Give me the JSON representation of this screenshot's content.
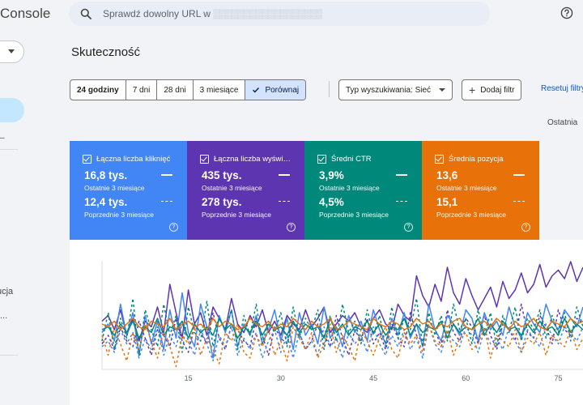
{
  "header": {
    "app_title": "Console",
    "search_placeholder": "Sprawdź dowolny URL w",
    "search_blurred": "▒▒▒▒▒▒▒▒▒▒▒▒▒▒▒▒▒▒"
  },
  "nav": {
    "dash": "–",
    "partial_item_1": "ucja",
    "partial_item_2": "..."
  },
  "page": {
    "title": "Skuteczność"
  },
  "date_range": {
    "options": [
      "24 godziny",
      "7 dni",
      "28 dni",
      "3 miesiące",
      "Porównaj"
    ],
    "selected": "Porównaj"
  },
  "filters": {
    "search_type": "Typ wyszukiwania: Sieć",
    "add_filter": "Dodaj filtr",
    "reset": "Resetuj filtry",
    "last_updated": "Ostatnia"
  },
  "metrics": [
    {
      "label": "Łączna liczba kliknięć",
      "current": "16,8 tys.",
      "current_period": "Ostatnie 3 miesiące",
      "previous": "12,4 tys.",
      "previous_period": "Poprzednie 3 miesiące",
      "color": "#4285f4"
    },
    {
      "label": "Łączna liczba wyświ…",
      "current": "435 tys.",
      "current_period": "Ostatnie 3 miesiące",
      "previous": "278 tys.",
      "previous_period": "Poprzednie 3 miesiące",
      "color": "#5e35b1"
    },
    {
      "label": "Średni CTR",
      "current": "3,9%",
      "current_period": "Ostatnie 3 miesiące",
      "previous": "4,5%",
      "previous_period": "Poprzednie 3 miesiące",
      "color": "#00897b"
    },
    {
      "label": "Średnia pozycja",
      "current": "13,6",
      "current_period": "Ostatnie 3 miesiące",
      "previous": "15,1",
      "previous_period": "Poprzednie 3 miesiące",
      "color": "#e8710a"
    }
  ],
  "chart_data": {
    "type": "line",
    "x_ticks": [
      15,
      30,
      45,
      60,
      75
    ],
    "xlim": [
      1,
      79
    ],
    "grid": false,
    "series": [
      {
        "color": "#5e35b1",
        "style": "solid",
        "values": [
          54,
          58,
          48,
          62,
          44,
          56,
          40,
          54,
          50,
          64,
          46,
          80,
          60,
          42,
          76,
          52,
          60,
          44,
          64,
          56,
          48,
          70,
          52,
          46,
          58,
          50,
          62,
          46,
          54,
          44,
          58,
          52,
          48,
          62,
          50,
          56,
          64,
          46,
          52,
          58,
          54,
          60,
          50,
          46,
          56,
          62,
          52,
          48,
          66,
          58,
          54,
          86,
          72,
          64,
          80,
          68,
          92,
          74,
          66,
          84,
          72,
          62,
          70,
          78,
          64,
          82,
          70,
          76,
          88,
          74,
          80,
          94,
          78,
          86,
          90,
          84,
          96,
          82,
          92
        ]
      },
      {
        "color": "#5e35b1",
        "style": "dashed",
        "values": [
          38,
          44,
          34,
          50,
          40,
          36,
          54,
          42,
          30,
          48,
          44,
          36,
          56,
          40,
          32,
          50,
          46,
          38,
          60,
          42,
          34,
          52,
          48,
          40,
          36,
          56,
          44,
          30,
          50,
          42,
          38,
          54,
          46,
          34,
          40,
          52,
          44,
          36,
          58,
          42,
          30,
          48,
          40,
          56,
          38,
          46,
          34,
          52,
          42,
          36,
          60,
          44,
          40,
          54,
          48,
          36,
          62,
          46,
          40,
          56,
          50,
          38,
          58,
          44,
          34,
          52,
          48,
          40,
          66,
          46,
          42,
          58,
          50,
          38,
          62,
          48,
          44,
          56,
          52
        ]
      },
      {
        "color": "#4285f4",
        "style": "solid",
        "values": [
          46,
          52,
          40,
          66,
          44,
          60,
          30,
          58,
          38,
          54,
          34,
          62,
          42,
          74,
          46,
          36,
          66,
          50,
          28,
          58,
          46,
          62,
          36,
          52,
          44,
          58,
          38,
          48,
          62,
          40,
          56,
          34,
          60,
          44,
          52,
          38,
          64,
          42,
          50,
          36,
          58,
          46,
          54,
          40,
          62,
          48,
          38,
          56,
          44,
          60,
          42,
          52,
          36,
          66,
          48,
          40,
          58,
          52,
          44,
          62,
          56,
          40,
          60,
          48,
          54,
          44,
          64,
          50,
          42,
          60,
          52,
          46,
          66,
          54,
          48,
          62,
          56,
          50,
          64
        ]
      },
      {
        "color": "#4285f4",
        "style": "dashed",
        "values": [
          36,
          40,
          32,
          48,
          38,
          46,
          28,
          42,
          34,
          50,
          30,
          44,
          36,
          52,
          40,
          30,
          48,
          38,
          26,
          44,
          36,
          50,
          30,
          42,
          34,
          46,
          28,
          40,
          48,
          32,
          44,
          28,
          46,
          34,
          40,
          30,
          50,
          36,
          42,
          28,
          46,
          38,
          44,
          32,
          50,
          38,
          30,
          44,
          36,
          48,
          34,
          42,
          28,
          52,
          38,
          32,
          46,
          40,
          36,
          50,
          44,
          32,
          48,
          38,
          42,
          34,
          50,
          40,
          32,
          48,
          42,
          36,
          52,
          44,
          38,
          50,
          46,
          40,
          50
        ]
      },
      {
        "color": "#00897b",
        "style": "solid",
        "values": [
          48,
          50,
          44,
          52,
          46,
          54,
          42,
          50,
          46,
          56,
          44,
          50,
          48,
          54,
          42,
          52,
          46,
          50,
          44,
          56,
          48,
          52,
          42,
          50,
          46,
          54,
          44,
          52,
          48,
          50,
          44,
          54,
          46,
          52,
          48,
          50,
          42,
          56,
          46,
          52,
          44,
          50,
          48,
          54,
          46,
          52,
          44,
          50,
          48,
          56,
          44,
          52,
          46,
          50,
          48,
          54,
          42,
          52,
          46,
          50,
          48,
          56,
          44,
          52,
          46,
          54,
          48,
          50,
          44,
          52,
          46,
          54,
          48,
          50,
          44,
          56,
          46,
          52,
          48
        ]
      },
      {
        "color": "#00897b",
        "style": "dashed",
        "values": [
          40,
          60,
          34,
          56,
          42,
          70,
          30,
          62,
          48,
          36,
          66,
          44,
          58,
          32,
          64,
          46,
          40,
          68,
          36,
          56,
          48,
          62,
          34,
          58,
          44,
          66,
          38,
          54,
          46,
          60,
          36,
          64,
          42,
          56,
          48,
          62,
          34,
          58,
          40,
          66,
          46,
          54,
          38,
          62,
          44,
          58,
          36,
          64,
          42,
          56,
          48,
          70,
          36,
          60,
          44,
          58,
          40,
          66,
          48,
          56,
          38,
          62,
          44,
          60,
          36,
          58,
          46,
          64,
          40,
          56,
          48,
          62,
          42,
          58,
          46,
          60,
          40,
          64,
          50
        ]
      },
      {
        "color": "#e8710a",
        "style": "solid",
        "values": [
          52,
          50,
          54,
          48,
          52,
          56,
          50,
          48,
          54,
          52,
          50,
          56,
          48,
          52,
          54,
          50,
          52,
          48,
          56,
          50,
          54,
          52,
          48,
          50,
          56,
          52,
          50,
          54,
          48,
          52,
          50,
          56,
          52,
          48,
          54,
          50,
          52,
          56,
          48,
          50,
          54,
          52,
          50,
          48,
          56,
          52,
          50,
          54,
          52,
          48,
          50,
          56,
          52,
          54,
          48,
          52,
          50,
          54,
          56,
          50,
          48,
          52,
          54,
          50,
          56,
          52,
          48,
          54,
          50,
          52,
          56,
          50,
          48,
          54,
          52,
          50,
          56,
          52,
          54
        ]
      },
      {
        "color": "#e8710a",
        "style": "dashed",
        "values": [
          44,
          30,
          50,
          38,
          26,
          46,
          34,
          52,
          40,
          28,
          48,
          36,
          22,
          44,
          38,
          50,
          30,
          42,
          34,
          24,
          46,
          40,
          52,
          32,
          28,
          44,
          36,
          48,
          30,
          40,
          26,
          50,
          42,
          34,
          46,
          28,
          38,
          52,
          32,
          44,
          36,
          26,
          48,
          40,
          30,
          42,
          50,
          34,
          28,
          46,
          38,
          44,
          32,
          52,
          40,
          36,
          48,
          30,
          42,
          46,
          34,
          38,
          50,
          28,
          44,
          40,
          36,
          48,
          32,
          42,
          38,
          46,
          30,
          44,
          40,
          36,
          48,
          34,
          42
        ]
      }
    ]
  }
}
